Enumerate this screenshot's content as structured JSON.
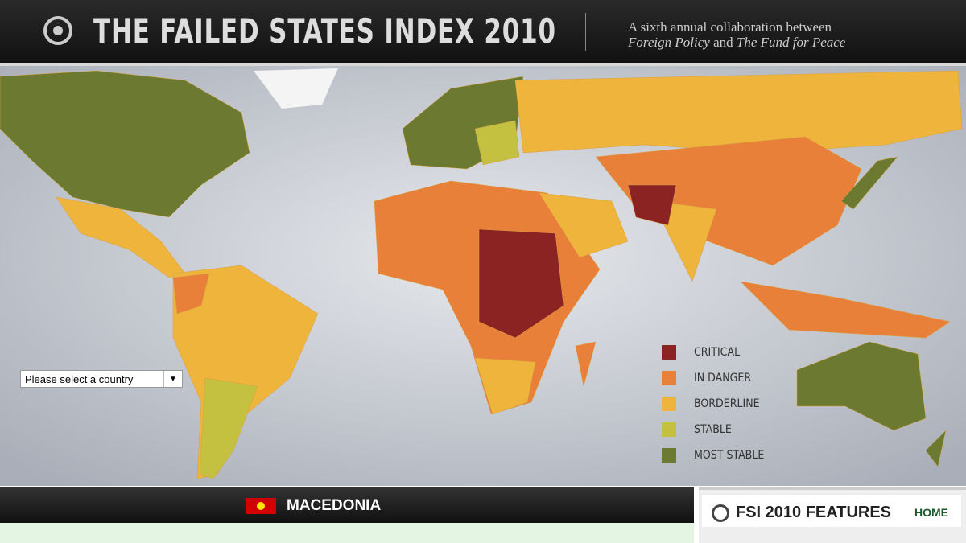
{
  "header": {
    "title": "THE FAILED STATES INDEX 2010",
    "subtitle": {
      "line1": "A sixth annual collaboration between",
      "part1": "Foreign Policy",
      "part2": "and",
      "part3": "The Fund for Peace"
    }
  },
  "legend": {
    "items": [
      {
        "label": "CRITICAL",
        "color": "#8b2323"
      },
      {
        "label": "IN DANGER",
        "color": "#e8803a"
      },
      {
        "label": "BORDERLINE",
        "color": "#efb43c"
      },
      {
        "label": "STABLE",
        "color": "#c4c040"
      },
      {
        "label": "MOST STABLE",
        "color": "#6b7a30"
      }
    ]
  },
  "dropdown": {
    "placeholder": "Please select a country"
  },
  "country_bar": {
    "country": "MACEDONIA"
  },
  "features": {
    "title": "FSI 2010 FEATURES",
    "link": "HOME"
  }
}
